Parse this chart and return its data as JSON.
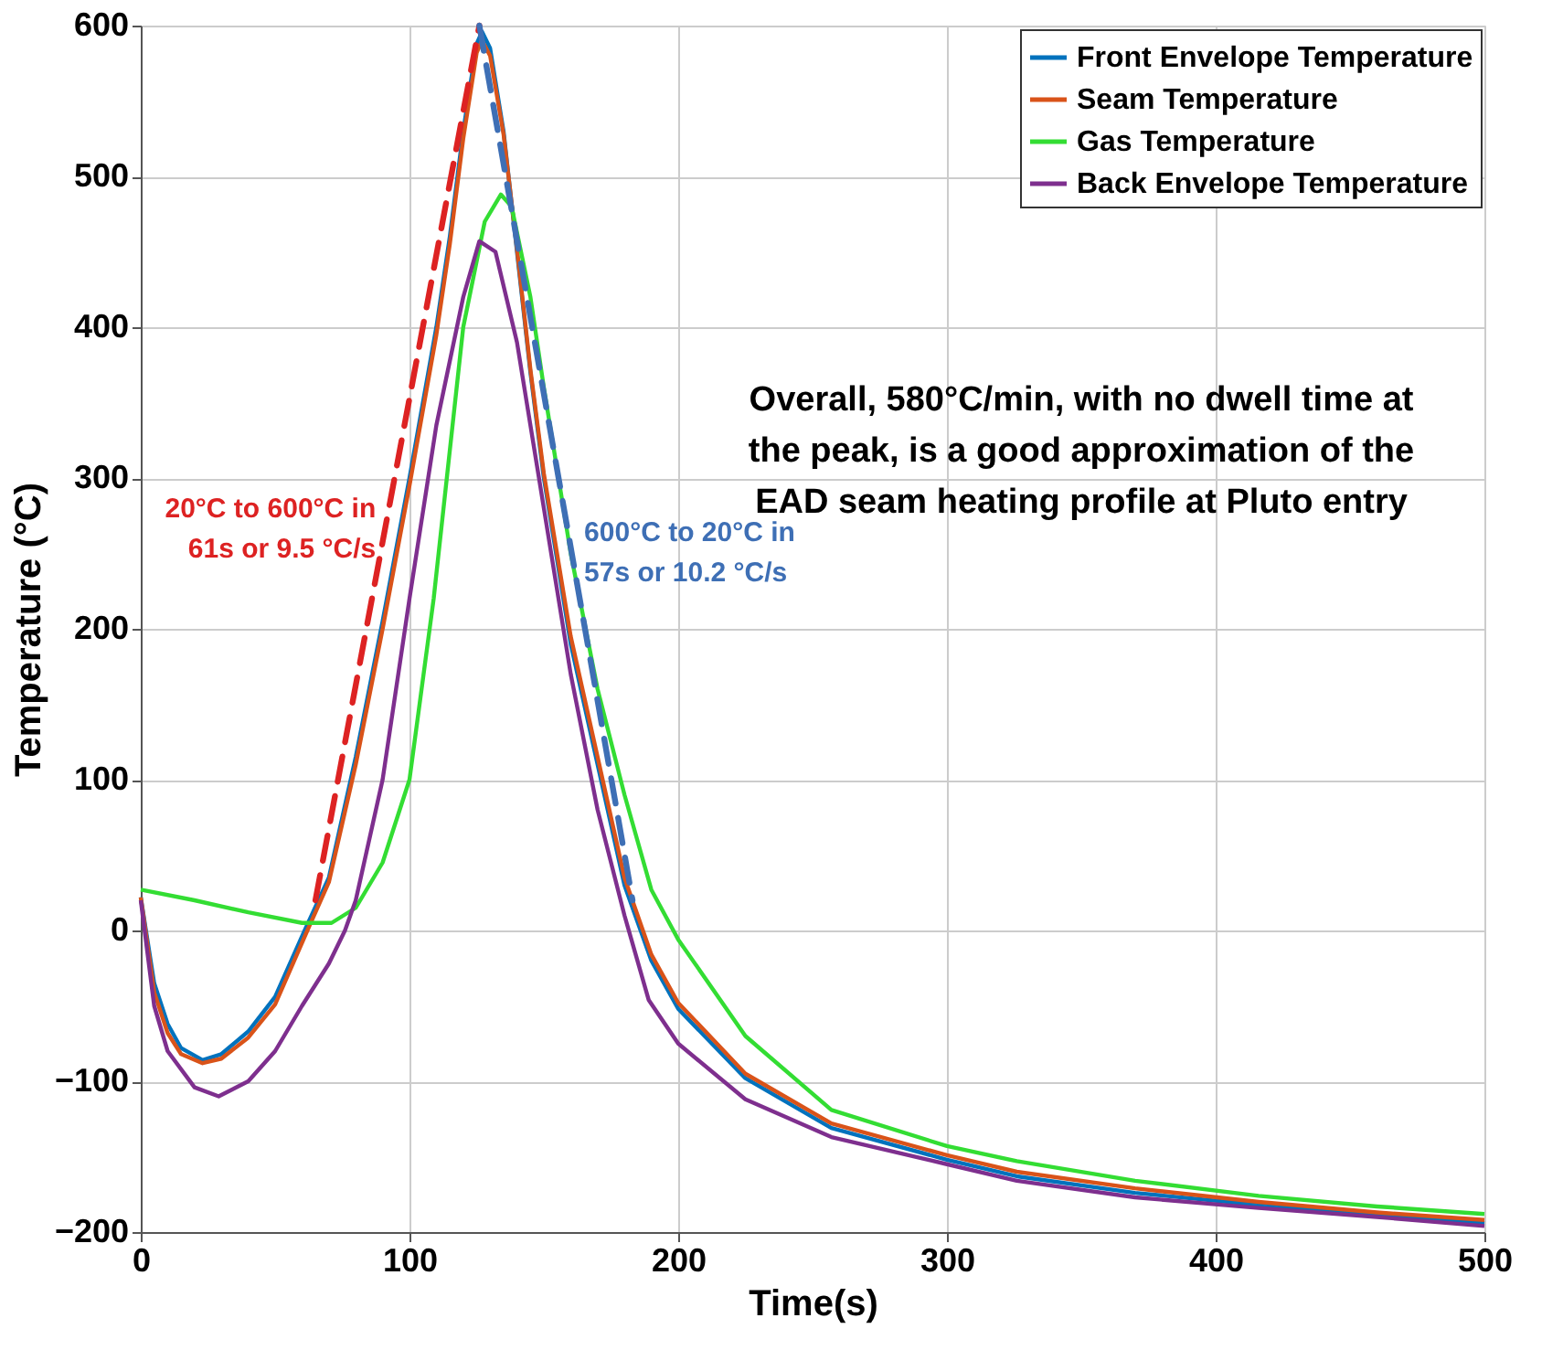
{
  "chart_data": {
    "type": "line",
    "xlabel": "Time(s)",
    "ylabel": "Temperature (°C)",
    "xlim": [
      0,
      500
    ],
    "xticks": [
      0,
      100,
      200,
      300,
      400,
      500
    ],
    "ylim": [
      -200,
      600
    ],
    "yticks": [
      -200,
      -100,
      0,
      100,
      200,
      300,
      400,
      500,
      600
    ],
    "grid": true,
    "legend": "top right",
    "line_style": "solid",
    "marker": "none",
    "series": [
      {
        "name": "Front Envelope Temperature",
        "color": "#0072bd",
        "x": [
          0,
          5,
          10,
          15,
          23,
          30,
          40,
          50,
          61,
          70,
          80,
          90,
          100,
          110,
          115,
          120,
          125,
          127,
          130,
          135,
          140,
          145,
          150,
          160,
          170,
          180,
          190,
          200,
          225,
          257,
          300,
          326,
          370,
          416,
          460,
          500
        ],
        "values": [
          22,
          -35,
          -62,
          -78,
          -86,
          -82,
          -67,
          -44,
          0,
          35,
          115,
          205,
          300,
          400,
          460,
          530,
          588,
          596,
          585,
          530,
          450,
          370,
          300,
          190,
          110,
          30,
          -20,
          -52,
          -98,
          -131,
          -152,
          -163,
          -174,
          -182,
          -189,
          -194
        ]
      },
      {
        "name": "Seam Temperature",
        "color": "#d95319",
        "x": [
          0,
          5,
          10,
          15,
          23,
          30,
          40,
          50,
          62,
          70,
          80,
          90,
          100,
          110,
          115,
          120,
          125,
          127,
          130,
          135,
          140,
          145,
          150,
          160,
          170,
          180,
          190,
          200,
          225,
          257,
          300,
          326,
          370,
          416,
          460,
          500
        ],
        "values": [
          22,
          -41,
          -68,
          -82,
          -88,
          -85,
          -71,
          -49,
          0,
          32,
          110,
          200,
          295,
          395,
          455,
          525,
          582,
          590,
          580,
          528,
          452,
          372,
          303,
          195,
          115,
          35,
          -16,
          -48,
          -95,
          -128,
          -149,
          -160,
          -171,
          -180,
          -187,
          -192
        ]
      },
      {
        "name": "Gas Temperature",
        "color": "#33dd33",
        "x": [
          0,
          20,
          40,
          60,
          71,
          80,
          90,
          100,
          109,
          120,
          128,
          134,
          138,
          145,
          150,
          160,
          170,
          180,
          190,
          200,
          225,
          257,
          300,
          326,
          370,
          416,
          460,
          500
        ],
        "values": [
          27,
          20,
          12,
          5,
          5,
          15,
          45,
          100,
          220,
          400,
          470,
          488,
          480,
          420,
          360,
          250,
          160,
          90,
          27,
          -6,
          -70,
          -119,
          -143,
          -153,
          -166,
          -176,
          -183,
          -188
        ]
      },
      {
        "name": "Back Envelope Temperature",
        "color": "#7e2f8e",
        "x": [
          0,
          5,
          10,
          20,
          29,
          40,
          50,
          60,
          70,
          76,
          80,
          90,
          100,
          110,
          120,
          126,
          132,
          140,
          150,
          160,
          170,
          180,
          189,
          200,
          225,
          257,
          300,
          326,
          370,
          416,
          460,
          500
        ],
        "values": [
          20,
          -50,
          -80,
          -104,
          -110,
          -100,
          -80,
          -50,
          -22,
          0,
          20,
          100,
          220,
          335,
          420,
          457,
          450,
          390,
          280,
          170,
          80,
          10,
          -46,
          -75,
          -112,
          -137,
          -155,
          -166,
          -177,
          -184,
          -190,
          -196
        ]
      },
      {
        "color": "#dd2222",
        "line_style": "dashed",
        "x": [
          65,
          126
        ],
        "values": [
          20,
          600
        ]
      },
      {
        "color": "#3e6fb5",
        "line_style": "dashed",
        "x": [
          126,
          183
        ],
        "values": [
          600,
          20
        ]
      }
    ],
    "annotations": [
      "20°C to 600°C in\n61s or 9.5 °C/s",
      "600°C to 20°C in\n57s or 10.2 °C/s",
      "Overall, 580°C/min, with no dwell time at\nthe peak, is a good approximation of the\nEAD seam heating profile at Pluto entry"
    ]
  }
}
